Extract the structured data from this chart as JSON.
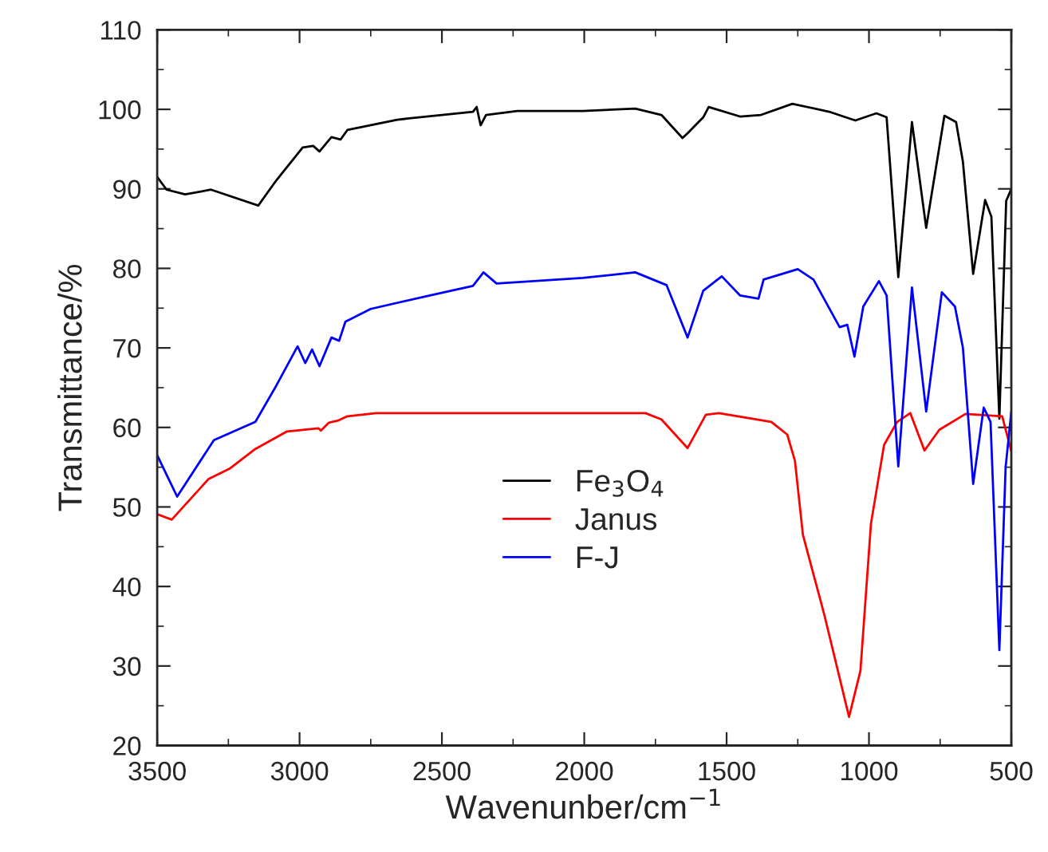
{
  "chart_data": {
    "type": "line",
    "xlabel": "Wavenunber/cm$^{−1}$",
    "ylabel": "Transmittance/%",
    "xlim": [
      3500,
      500
    ],
    "ylim": [
      20,
      110
    ],
    "xticks": [
      3500,
      {
        "value": 3250,
        "label": null
      },
      3000,
      {
        "value": 2750,
        "label": null
      },
      2500,
      {
        "value": 2250,
        "label": null
      },
      2000,
      {
        "value": 1750,
        "label": null
      },
      1500,
      {
        "value": 1250,
        "label": null
      },
      1000,
      {
        "value": 750,
        "label": null
      },
      500
    ],
    "yticks": [
      20,
      {
        "value": 25,
        "label": null
      },
      30,
      {
        "value": 35,
        "label": null
      },
      40,
      {
        "value": 45,
        "label": null
      },
      50,
      {
        "value": 55,
        "label": null
      },
      60,
      {
        "value": 65,
        "label": null
      },
      70,
      {
        "value": 75,
        "label": null
      },
      80,
      {
        "value": 85,
        "label": null
      },
      90,
      {
        "value": 95,
        "label": null
      },
      100,
      {
        "value": 105,
        "label": null
      },
      110
    ],
    "grid": false,
    "legend": "bottom",
    "marker": "none",
    "line_style": "solid",
    "series": [
      {
        "name": "Fe$_{3}$O$_{4}$",
        "color": "#000000",
        "x": [
          3500,
          3467,
          3402,
          3311,
          3145,
          3081,
          2989,
          2952,
          2930,
          2888,
          2856,
          2832,
          2657,
          2391,
          2378,
          2364,
          2345,
          2235,
          2005,
          1821,
          1729,
          1655,
          1637,
          1582,
          1563,
          1453,
          1379,
          1269,
          1140,
          1048,
          974,
          938,
          897,
          849,
          799,
          735,
          694,
          670,
          634,
          592,
          570,
          542,
          518,
          500
        ],
        "values": [
          91.5,
          89.9,
          89.3,
          89.9,
          87.9,
          91.1,
          95.2,
          95.4,
          94.7,
          96.5,
          96.2,
          97.4,
          98.7,
          99.7,
          100.3,
          98.0,
          99.3,
          99.8,
          99.8,
          100.1,
          99.3,
          96.4,
          97.0,
          99.0,
          100.3,
          99.1,
          99.3,
          100.7,
          99.7,
          98.6,
          99.5,
          99.0,
          78.9,
          98.4,
          85.1,
          99.2,
          98.4,
          93.4,
          79.3,
          88.6,
          86.5,
          61.1,
          88.5,
          90.0
        ]
      },
      {
        "name": "Janus",
        "color": "#ff0000",
        "x": [
          3500,
          3449,
          3320,
          3246,
          3155,
          3044,
          2934,
          2925,
          2897,
          2862,
          2832,
          2731,
          2005,
          1785,
          1729,
          1637,
          1573,
          1527,
          1343,
          1287,
          1260,
          1232,
          1158,
          1122,
          1070,
          1030,
          993,
          947,
          901,
          855,
          805,
          753,
          661,
          532,
          500
        ],
        "values": [
          49.1,
          48.4,
          53.5,
          54.8,
          57.3,
          59.5,
          59.9,
          59.6,
          60.6,
          60.9,
          61.4,
          61.8,
          61.8,
          61.8,
          61.0,
          57.4,
          61.6,
          61.8,
          60.7,
          59.1,
          55.8,
          46.5,
          36.6,
          31.3,
          23.6,
          29.4,
          47.9,
          57.8,
          60.7,
          61.8,
          57.1,
          59.7,
          61.7,
          61.4,
          57.0
        ]
      },
      {
        "name": "F-J",
        "color": "#0000ff",
        "x": [
          3500,
          3430,
          3301,
          3155,
          3081,
          3007,
          2980,
          2956,
          2930,
          2888,
          2861,
          2839,
          2750,
          2530,
          2391,
          2354,
          2308,
          2005,
          1821,
          1711,
          1674,
          1637,
          1582,
          1517,
          1453,
          1388,
          1370,
          1250,
          1195,
          1103,
          1076,
          1051,
          1020,
          965,
          938,
          897,
          849,
          799,
          744,
          698,
          670,
          634,
          597,
          573,
          542,
          520,
          500
        ],
        "values": [
          56.5,
          51.3,
          58.4,
          60.7,
          65.3,
          70.2,
          68.1,
          69.8,
          67.7,
          71.3,
          70.9,
          73.3,
          74.9,
          76.7,
          77.8,
          79.5,
          78.1,
          78.8,
          79.5,
          77.9,
          74.6,
          71.3,
          77.2,
          79.0,
          76.6,
          76.2,
          78.6,
          79.9,
          78.6,
          72.6,
          72.9,
          68.9,
          75.2,
          78.4,
          76.6,
          55.1,
          77.6,
          62.0,
          77.0,
          75.2,
          70.0,
          52.9,
          62.5,
          60.7,
          32.0,
          55.0,
          62.0
        ]
      }
    ]
  }
}
